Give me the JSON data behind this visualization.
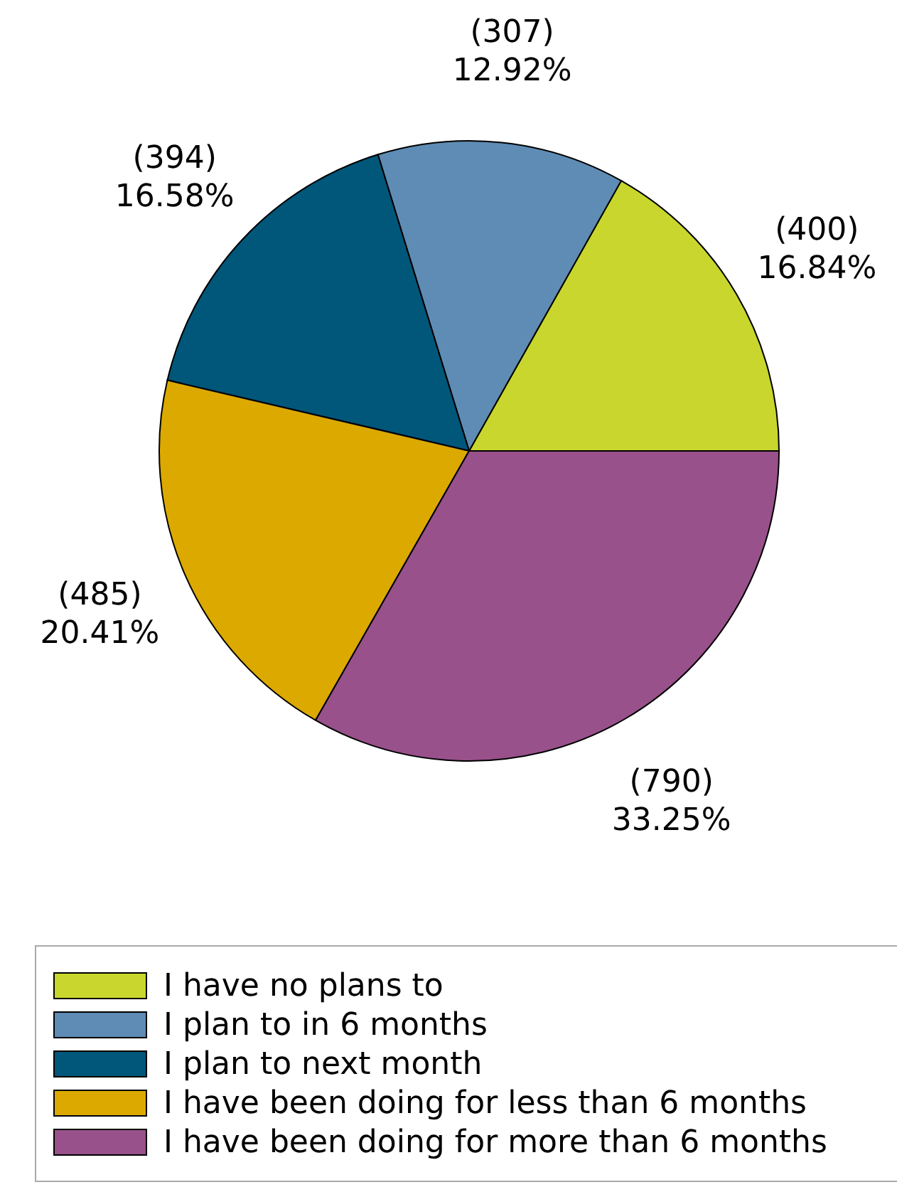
{
  "chart_data": {
    "type": "pie",
    "categories": [
      "I have no plans to",
      "I plan to in 6 months",
      "I plan to next month",
      "I have been doing for less than 6 months",
      "I have been doing for more than 6 months"
    ],
    "values": [
      400,
      307,
      394,
      485,
      790
    ],
    "value_labels": [
      "(400)\n16.84%",
      "(307)\n12.92%",
      "(394)\n16.58%",
      "(485)\n20.41%",
      "(790)\n33.25%"
    ],
    "colors": [
      "#c8d62e",
      "#5e8cb4",
      "#00577a",
      "#dba900",
      "#98518a"
    ],
    "legend": "bottom"
  }
}
